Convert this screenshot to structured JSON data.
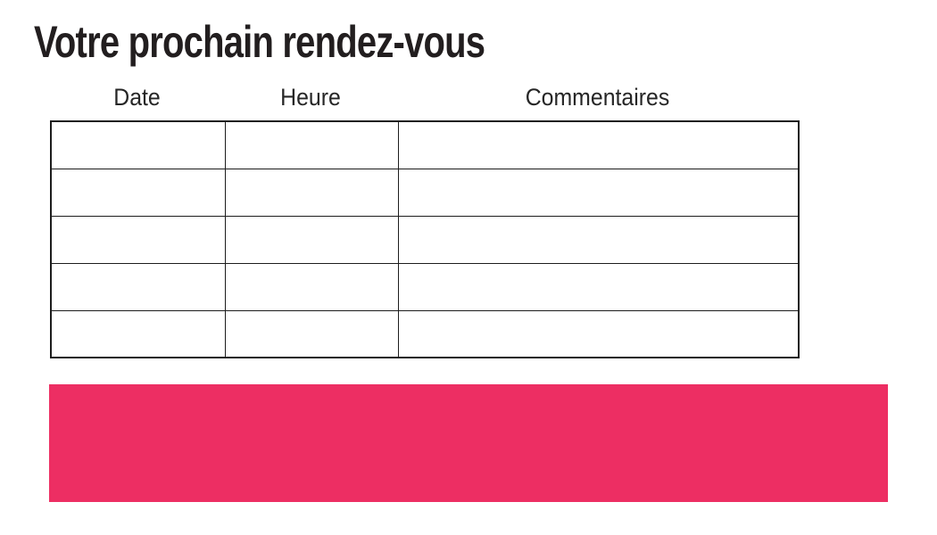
{
  "page": {
    "title": "Votre prochain rendez-vous"
  },
  "table": {
    "columns": [
      {
        "label": "Date"
      },
      {
        "label": "Heure"
      },
      {
        "label": "Commentaires"
      }
    ],
    "row_count": 5,
    "cells_empty": true
  },
  "colors": {
    "accent_pink": "#ed2e63",
    "title_text": "#221e1f",
    "table_border": "#1d1d1d"
  }
}
